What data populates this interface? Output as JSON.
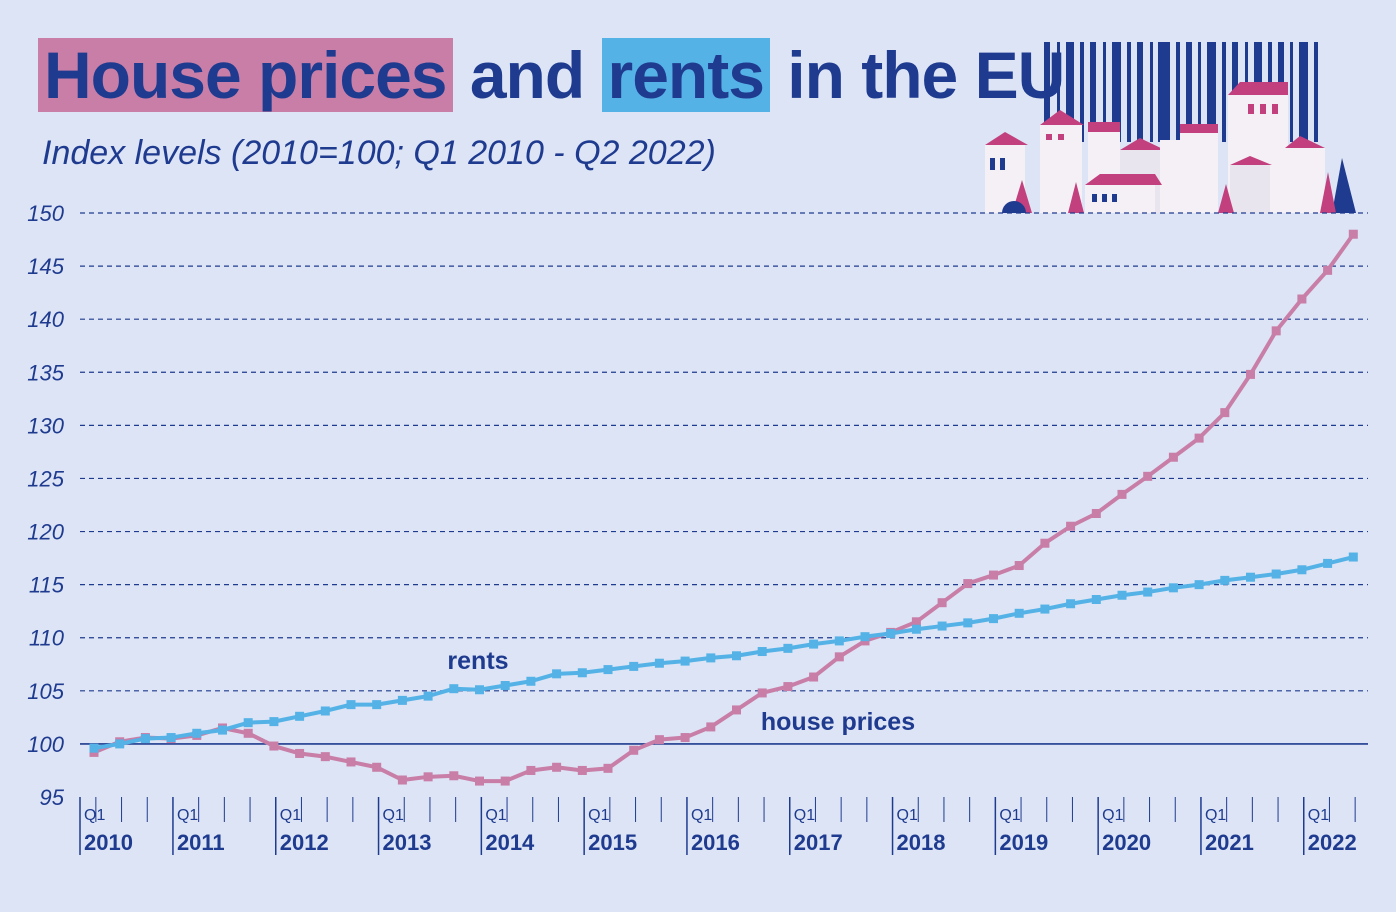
{
  "title": {
    "part1": "House prices",
    "part2": "and",
    "part3": "rents",
    "part4": "in the EU"
  },
  "subtitle": "Index levels (2010=100; Q1 2010  - Q2 2022)",
  "colors": {
    "background": "#dce4f5",
    "house_prices": "#c87ea7",
    "rents": "#55b2e6",
    "text": "#1f3b8f"
  },
  "chart_data": {
    "type": "line",
    "title": "House prices and rents in the EU",
    "subtitle": "Index levels (2010=100; Q1 2010  - Q2 2022)",
    "xlabel": "",
    "ylabel": "",
    "ylim": [
      95,
      150
    ],
    "yticks": [
      95,
      100,
      105,
      110,
      115,
      120,
      125,
      130,
      135,
      140,
      145,
      150
    ],
    "grid": true,
    "year_labels": [
      "2010",
      "2011",
      "2012",
      "2013",
      "2014",
      "2015",
      "2016",
      "2017",
      "2018",
      "2019",
      "2020",
      "2021",
      "2022"
    ],
    "quarter_label": "Q1",
    "x": [
      "2010Q1",
      "2010Q2",
      "2010Q3",
      "2010Q4",
      "2011Q1",
      "2011Q2",
      "2011Q3",
      "2011Q4",
      "2012Q1",
      "2012Q2",
      "2012Q3",
      "2012Q4",
      "2013Q1",
      "2013Q2",
      "2013Q3",
      "2013Q4",
      "2014Q1",
      "2014Q2",
      "2014Q3",
      "2014Q4",
      "2015Q1",
      "2015Q2",
      "2015Q3",
      "2015Q4",
      "2016Q1",
      "2016Q2",
      "2016Q3",
      "2016Q4",
      "2017Q1",
      "2017Q2",
      "2017Q3",
      "2017Q4",
      "2018Q1",
      "2018Q2",
      "2018Q3",
      "2018Q4",
      "2019Q1",
      "2019Q2",
      "2019Q3",
      "2019Q4",
      "2020Q1",
      "2020Q2",
      "2020Q3",
      "2020Q4",
      "2021Q1",
      "2021Q2",
      "2021Q3",
      "2021Q4",
      "2022Q1",
      "2022Q2"
    ],
    "series": [
      {
        "name": "house prices",
        "color": "#c87ea7",
        "values": [
          99.2,
          100.2,
          100.6,
          100.5,
          100.8,
          101.5,
          101.0,
          99.8,
          99.1,
          98.8,
          98.3,
          97.8,
          96.6,
          96.9,
          97.0,
          96.5,
          96.5,
          97.5,
          97.8,
          97.5,
          97.7,
          99.4,
          100.4,
          100.6,
          101.6,
          103.2,
          104.8,
          105.4,
          106.3,
          108.2,
          109.7,
          110.5,
          111.5,
          113.3,
          115.1,
          115.9,
          116.8,
          118.9,
          120.5,
          121.7,
          123.5,
          125.2,
          127.0,
          128.8,
          131.2,
          134.8,
          138.9,
          141.9,
          144.6,
          148.0
        ]
      },
      {
        "name": "rents",
        "color": "#55b2e6",
        "values": [
          99.6,
          100.0,
          100.5,
          100.6,
          101.0,
          101.3,
          102.0,
          102.1,
          102.6,
          103.1,
          103.7,
          103.7,
          104.1,
          104.5,
          105.2,
          105.1,
          105.5,
          105.9,
          106.6,
          106.7,
          107.0,
          107.3,
          107.6,
          107.8,
          108.1,
          108.3,
          108.7,
          109.0,
          109.4,
          109.7,
          110.1,
          110.4,
          110.8,
          111.1,
          111.4,
          111.8,
          112.3,
          112.7,
          113.2,
          113.6,
          114.0,
          114.3,
          114.7,
          115.0,
          115.4,
          115.7,
          116.0,
          116.4,
          117.0,
          117.6
        ]
      }
    ],
    "annotations": {
      "rents": "rents",
      "house_prices": "house prices"
    }
  }
}
